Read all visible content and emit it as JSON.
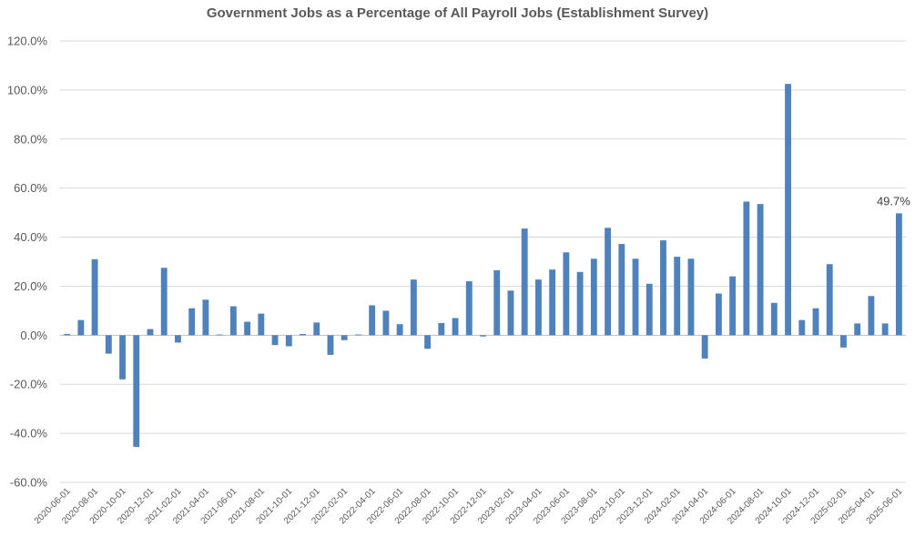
{
  "chart_data": {
    "type": "bar",
    "title": "Government Jobs as a Percentage of All Payroll Jobs (Establishment Survey)",
    "xlabel": "",
    "ylabel": "",
    "ylim": [
      -60,
      120
    ],
    "yticks": [
      -60,
      -40,
      -20,
      0,
      20,
      40,
      60,
      80,
      100,
      120
    ],
    "ytick_labels": [
      "-60.0%",
      "-40.0%",
      "-20.0%",
      "0.0%",
      "20.0%",
      "40.0%",
      "60.0%",
      "80.0%",
      "100.0%",
      "120.0%"
    ],
    "grid": true,
    "bar_color": "#4f81bd",
    "categories": [
      "2020-06-01",
      "2020-07-01",
      "2020-08-01",
      "2020-09-01",
      "2020-10-01",
      "2020-11-01",
      "2020-12-01",
      "2021-01-01",
      "2021-02-01",
      "2021-03-01",
      "2021-04-01",
      "2021-05-01",
      "2021-06-01",
      "2021-07-01",
      "2021-08-01",
      "2021-09-01",
      "2021-10-01",
      "2021-11-01",
      "2021-12-01",
      "2022-01-01",
      "2022-02-01",
      "2022-03-01",
      "2022-04-01",
      "2022-05-01",
      "2022-06-01",
      "2022-07-01",
      "2022-08-01",
      "2022-09-01",
      "2022-10-01",
      "2022-11-01",
      "2022-12-01",
      "2023-01-01",
      "2023-02-01",
      "2023-03-01",
      "2023-04-01",
      "2023-05-01",
      "2023-06-01",
      "2023-07-01",
      "2023-08-01",
      "2023-09-01",
      "2023-10-01",
      "2023-11-01",
      "2023-12-01",
      "2024-01-01",
      "2024-02-01",
      "2024-03-01",
      "2024-04-01",
      "2024-05-01",
      "2024-06-01",
      "2024-07-01",
      "2024-08-01",
      "2024-09-01",
      "2024-10-01",
      "2024-11-01",
      "2024-12-01",
      "2025-01-01",
      "2025-02-01",
      "2025-03-01",
      "2025-04-01",
      "2025-05-01",
      "2025-06-01"
    ],
    "xtick_labels": [
      "2020-06-01",
      "2020-08-01",
      "2020-10-01",
      "2020-12-01",
      "2021-02-01",
      "2021-04-01",
      "2021-06-01",
      "2021-08-01",
      "2021-10-01",
      "2021-12-01",
      "2022-02-01",
      "2022-04-01",
      "2022-06-01",
      "2022-08-01",
      "2022-10-01",
      "2022-12-01",
      "2023-02-01",
      "2023-04-01",
      "2023-06-01",
      "2023-08-01",
      "2023-10-01",
      "2023-12-01",
      "2024-02-01",
      "2024-04-01",
      "2024-06-01",
      "2024-08-01",
      "2024-10-01",
      "2024-12-01",
      "2025-02-01",
      "2025-04-01",
      "2025-06-01"
    ],
    "values": [
      0.5,
      6.2,
      31.0,
      -7.5,
      -18.0,
      -45.5,
      2.5,
      27.5,
      -3.0,
      11.0,
      14.5,
      0.3,
      11.8,
      5.5,
      8.8,
      -4.0,
      -4.5,
      0.5,
      5.2,
      -8.0,
      -2.0,
      0.3,
      12.2,
      10.0,
      4.5,
      22.7,
      -5.5,
      5.0,
      7.0,
      22.0,
      -0.5,
      26.5,
      18.2,
      43.5,
      22.7,
      26.8,
      33.8,
      25.8,
      31.2,
      43.8,
      37.2,
      31.2,
      21.0,
      38.7,
      32.0,
      31.2,
      -9.5,
      17.0,
      24.0,
      54.5,
      53.5,
      13.2,
      102.5,
      6.2,
      11.0,
      29.0,
      -5.0,
      4.8,
      16.0,
      4.8,
      49.7
    ],
    "annotations": [
      {
        "index": 60,
        "text": "49.7%"
      }
    ]
  }
}
